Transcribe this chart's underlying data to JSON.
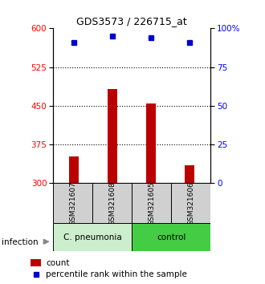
{
  "title": "GDS3573 / 226715_at",
  "samples": [
    "GSM321607",
    "GSM321608",
    "GSM321605",
    "GSM321606"
  ],
  "bar_values": [
    352,
    482,
    455,
    335
  ],
  "percentile_values": [
    91,
    95,
    94,
    91
  ],
  "bar_color": "#bb0000",
  "dot_color": "#0000cc",
  "ylim_left": [
    300,
    600
  ],
  "ylim_right": [
    0,
    100
  ],
  "yticks_left": [
    300,
    375,
    450,
    525,
    600
  ],
  "yticks_right": [
    0,
    25,
    50,
    75,
    100
  ],
  "ytick_labels_right": [
    "0",
    "25",
    "50",
    "75",
    "100%"
  ],
  "hlines": [
    375,
    450,
    525
  ],
  "group1_label": "C. pneumonia",
  "group1_color": "#cceecc",
  "group2_label": "control",
  "group2_color": "#44cc44",
  "infection_label": "infection",
  "legend_count_label": "count",
  "legend_percentile_label": "percentile rank within the sample",
  "bar_bottom": 300,
  "bar_width": 0.25,
  "x_positions": [
    0,
    1,
    2,
    3
  ]
}
